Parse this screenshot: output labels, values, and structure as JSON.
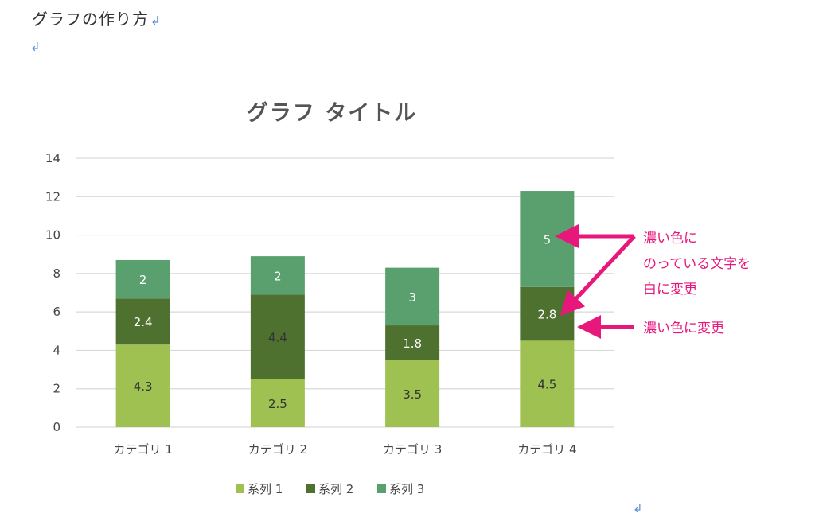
{
  "document": {
    "heading": "グラフの作り方",
    "paragraph_mark": "↲"
  },
  "colors": {
    "series1": "#9ec152",
    "series2": "#4e7130",
    "series3": "#5aa06e",
    "annotation": "#e8177c",
    "grid": "#d9d9d9"
  },
  "chart_data": {
    "type": "bar",
    "stacked": true,
    "title": "グラフ タイトル",
    "categories": [
      "カテゴリ 1",
      "カテゴリ 2",
      "カテゴリ 3",
      "カテゴリ 4"
    ],
    "series": [
      {
        "name": "系列 1",
        "values": [
          4.3,
          2.5,
          3.5,
          4.5
        ]
      },
      {
        "name": "系列 2",
        "values": [
          2.4,
          4.4,
          1.8,
          2.8
        ]
      },
      {
        "name": "系列 3",
        "values": [
          2,
          2,
          3,
          5
        ]
      }
    ],
    "data_label_colors": [
      [
        "#333333",
        "#333333",
        "#333333",
        "#333333"
      ],
      [
        "#ffffff",
        "#333333",
        "#ffffff",
        "#ffffff"
      ],
      [
        "#ffffff",
        "#ffffff",
        "#ffffff",
        "#ffffff"
      ]
    ],
    "ylim": [
      0,
      14
    ],
    "yticks": [
      0,
      2,
      4,
      6,
      8,
      10,
      12,
      14
    ],
    "grid": true,
    "legend": "bottom"
  },
  "annotations": {
    "note1_lines": [
      "濃い色に",
      "のっている文字を",
      "白に変更"
    ],
    "note2": "濃い色に変更"
  }
}
